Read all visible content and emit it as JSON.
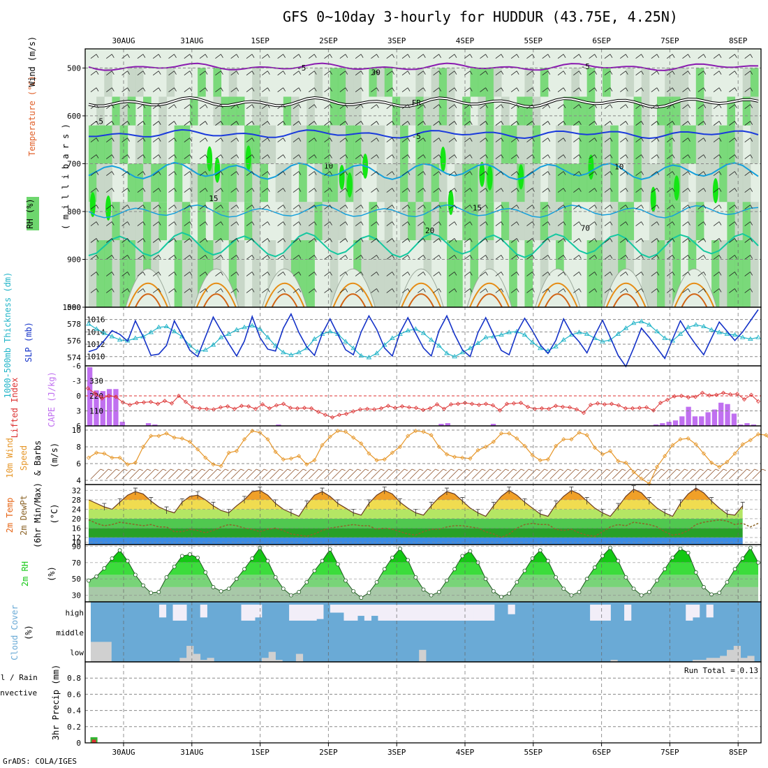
{
  "title": "GFS 0~10day 3-hourly for HUDDUR (43.75E, 4.25N)",
  "credit": "GrADS: COLA/IGES",
  "colors": {
    "rh_light": "#e4efe4",
    "rh_mid": "#c4d4c4",
    "rh_green": "#6ed66e",
    "rh_bright": "#14e614",
    "temp_purple": "#8a1ab0",
    "temp_freezing": "#000000",
    "temp_blue": "#1a3adc",
    "temp_cyan": "#14a0dc",
    "temp_teal": "#14c8a0",
    "temp_orange": "#e68c14",
    "temp_red": "#e61478",
    "slp": "#1432c8",
    "thickness": "#22b4c8",
    "cape": "#c070f0",
    "lifted": "#dc3232",
    "wind": "#e69628",
    "barb": "#8c5028",
    "temp2m": "#e66414",
    "dew": "#8c6428",
    "rh2m": "#14c814",
    "cloud": "#6aaad6",
    "cloud_clear": "#f2eef8",
    "cloud_low": "#d0d0d0",
    "precip_total": "#32b432",
    "precip_conv": "#dc3232"
  },
  "chart_data": [
    {
      "name": "upper-air",
      "type": "contour",
      "date_labels": [
        "30AUG",
        "31AUG",
        "1SEP",
        "2SEP",
        "3SEP",
        "4SEP",
        "5SEP",
        "6SEP",
        "7SEP",
        "8SEP"
      ],
      "ylabel_parts": [
        "RH (%)",
        "Temperature (°C)",
        "Wind (m/s)"
      ],
      "ylabel_axis": "( m i l l i b a r s )",
      "y_ticks": [
        500,
        600,
        700,
        800,
        900,
        1000
      ],
      "ylim": [
        460,
        1000
      ],
      "contour_labels": [
        {
          "text": "-5",
          "t": 0.32,
          "p": 505,
          "color": "temp_purple"
        },
        {
          "text": "-5",
          "t": 0.74,
          "p": 502,
          "color": "temp_purple"
        },
        {
          "text": "FR",
          "t": 0.49,
          "p": 578,
          "color": "temp_freezing"
        },
        {
          "text": "-5",
          "t": 0.02,
          "p": 617,
          "color": "temp_blue"
        },
        {
          "text": "-5",
          "t": 0.49,
          "p": 648,
          "color": "temp_blue"
        },
        {
          "text": "10",
          "t": 0.36,
          "p": 710,
          "color": "temp_cyan"
        },
        {
          "text": "10",
          "t": 0.79,
          "p": 712,
          "color": "temp_cyan"
        },
        {
          "text": "15",
          "t": 0.19,
          "p": 778,
          "color": "temp_cyan"
        },
        {
          "text": "15",
          "t": 0.58,
          "p": 798,
          "color": "temp_cyan"
        },
        {
          "text": "20",
          "t": 0.51,
          "p": 845,
          "color": "temp_teal"
        },
        {
          "text": "30",
          "t": 0.43,
          "p": 515,
          "color": "rh_mid"
        },
        {
          "text": "70",
          "t": 0.74,
          "p": 840,
          "color": "rh_mid"
        }
      ],
      "contours": {
        "m5": 498,
        "freezing": 572,
        "t5": 638,
        "t10": 715,
        "t15": 800,
        "t20": 870
      }
    },
    {
      "name": "thickness-slp",
      "type": "line",
      "ylabel_thickness": "1000-500mb Thickness (dm)",
      "ylabel_slp": "SLP (mb)",
      "left_ticks": [
        574,
        576,
        578,
        580
      ],
      "right_ticks": [
        1010,
        1012,
        1014,
        1016
      ],
      "slp_ylim": [
        1008.5,
        1018
      ],
      "thick_ylim": [
        573,
        580
      ],
      "slp": [
        1010.8,
        1011.2,
        1012.6,
        1014.2,
        1013.6,
        1012.5,
        1015.8,
        1013.2,
        1010.2,
        1010.4,
        1011.8,
        1015.8,
        1013.5,
        1011.0,
        1010.0,
        1013.2,
        1016.4,
        1014.2,
        1012.1,
        1010.1,
        1012.5,
        1016.5,
        1013.1,
        1011.2,
        1010.9,
        1014.6,
        1016.9,
        1013.9,
        1011.6,
        1010.2,
        1013.7,
        1016.1,
        1013.6,
        1011.1,
        1010.3,
        1014.0,
        1016.6,
        1014.4,
        1011.4,
        1010.1,
        1013.9,
        1016.3,
        1013.8,
        1011.4,
        1010.1,
        1014.2,
        1016.6,
        1013.6,
        1011.1,
        1010.0,
        1013.9,
        1016.3,
        1013.6,
        1011.0,
        1010.3,
        1013.9,
        1016.2,
        1014.2,
        1011.9,
        1010.5,
        1012.6,
        1016.1,
        1013.8,
        1012.4,
        1010.6,
        1013.4,
        1015.9,
        1013.1,
        1010.2,
        1008.4,
        1011.4,
        1014.6,
        1013.1,
        1011.4,
        1009.7,
        1012.8,
        1015.8,
        1013.7,
        1011.9,
        1010.3,
        1013.0,
        1015.6,
        1014.1,
        1012.6,
        1014.0,
        1015.8,
        1017.6
      ],
      "thickness": [
        578.0,
        577.4,
        576.9,
        576.5,
        576.1,
        576.0,
        576.3,
        576.5,
        577.0,
        577.6,
        577.7,
        577.1,
        576.5,
        575.4,
        574.7,
        574.9,
        575.5,
        576.4,
        576.8,
        577.3,
        577.6,
        577.8,
        577.4,
        576.4,
        575.4,
        574.6,
        574.3,
        574.6,
        575.1,
        576.2,
        576.8,
        577.1,
        576.8,
        575.9,
        575.1,
        574.2,
        574.0,
        574.5,
        575.5,
        576.3,
        576.8,
        577.2,
        577.4,
        576.9,
        576.1,
        575.4,
        574.5,
        574.1,
        574.6,
        575.1,
        575.7,
        576.4,
        576.5,
        576.7,
        577.0,
        577.1,
        576.7,
        575.8,
        575.1,
        574.8,
        575.3,
        576.1,
        576.7,
        577.0,
        576.8,
        576.3,
        575.9,
        576.1,
        576.8,
        577.5,
        578.1,
        578.3,
        577.9,
        577.1,
        576.3,
        576.0,
        576.8,
        577.6,
        577.9,
        577.7,
        577.3,
        577.0,
        576.8,
        576.7,
        576.4,
        576.2,
        576.4
      ]
    },
    {
      "name": "lifted-cape",
      "type": "bar+line",
      "ylabel_lifted": "Lifted Index",
      "ylabel_cape": "CAPE (J/kg)",
      "left_ticks": [
        "-6",
        "-3",
        "0",
        "3",
        "6"
      ],
      "right_ticks": [
        110,
        220,
        330
      ],
      "cape_ylim": [
        0,
        440
      ],
      "li_ylim": [
        -6,
        6
      ],
      "cape": [
        430,
        260,
        255,
        270,
        270,
        30,
        0,
        0,
        0,
        20,
        10,
        0,
        0,
        0,
        0,
        0,
        0,
        0,
        0,
        0,
        0,
        0,
        0,
        0,
        0,
        0,
        0,
        0,
        0,
        10,
        0,
        0,
        0,
        0,
        0,
        0,
        0,
        0,
        0,
        0,
        0,
        0,
        0,
        0,
        0,
        0,
        0,
        0,
        0,
        0,
        0,
        0,
        0,
        0,
        15,
        20,
        0,
        0,
        0,
        0,
        0,
        0,
        15,
        0,
        0,
        0,
        0,
        0,
        0,
        0,
        0,
        0,
        0,
        0,
        0,
        0,
        0,
        0,
        0,
        0,
        0,
        0,
        0,
        0,
        0,
        0,
        0,
        10,
        20,
        30,
        40,
        70,
        140,
        70,
        70,
        100,
        120,
        170,
        160,
        90,
        10,
        20,
        10
      ],
      "lifted": [
        -1.5,
        -0.5,
        0.5,
        0.0,
        0.2,
        1.3,
        1.8,
        1.4,
        1.3,
        1.2,
        1.6,
        1.0,
        1.5,
        -0.0,
        1.2,
        2.3,
        2.5,
        2.6,
        2.7,
        2.3,
        2.1,
        2.6,
        2.0,
        2.1,
        2.6,
        1.7,
        2.5,
        1.9,
        1.6,
        2.4,
        2.5,
        2.4,
        2.5,
        3.2,
        3.8,
        4.3,
        3.8,
        3.6,
        3.1,
        2.7,
        2.6,
        2.7,
        2.5,
        2.0,
        2.4,
        2.1,
        2.3,
        2.4,
        2.8,
        2.5,
        1.7,
        2.6,
        1.7,
        1.6,
        1.4,
        1.6,
        1.8,
        1.6,
        1.9,
        2.9,
        1.6,
        1.5,
        1.4,
        2.2,
        2.6,
        2.5,
        2.6,
        2.0,
        2.2,
        2.3,
        2.7,
        3.4,
        1.8,
        1.5,
        1.7,
        1.6,
        1.9,
        2.5,
        2.5,
        2.4,
        2.3,
        2.9,
        1.4,
        0.8,
        0.1,
        -0.0,
        0.3,
        0.2,
        -0.6,
        -0.1,
        -0.2,
        -0.6,
        -0.3,
        -0.4,
        0.7,
        -0.2,
        1.1
      ]
    },
    {
      "name": "wind10m",
      "type": "line",
      "ylabel_wind": "10m Wind",
      "ylabel_speed": "Speed",
      "ylabel_barbs": "& Barbs",
      "ylabel_unit": "(m/s)",
      "ticks": [
        4,
        6,
        8,
        10
      ],
      "ylim": [
        3.5,
        10.5
      ],
      "values": [
        6.7,
        7.3,
        7.2,
        6.7,
        6.7,
        5.9,
        6.1,
        8.0,
        9.3,
        9.3,
        9.6,
        9.1,
        9.0,
        8.6,
        7.7,
        6.7,
        5.9,
        5.7,
        7.3,
        7.5,
        8.9,
        9.9,
        9.7,
        8.9,
        7.4,
        6.5,
        6.6,
        6.9,
        5.9,
        6.4,
        8.2,
        9.2,
        9.9,
        9.8,
        9.1,
        8.4,
        7.2,
        6.4,
        6.5,
        7.3,
        8.0,
        9.3,
        9.9,
        9.8,
        9.4,
        8.0,
        7.1,
        6.8,
        6.7,
        6.6,
        7.6,
        8.0,
        8.6,
        9.6,
        9.6,
        9.0,
        8.1,
        7.0,
        6.4,
        6.5,
        8.1,
        8.9,
        8.9,
        9.7,
        9.4,
        7.9,
        7.1,
        7.5,
        6.3,
        6.1,
        5.0,
        4.2,
        3.6,
        5.6,
        6.9,
        8.2,
        8.9,
        9.0,
        8.3,
        7.2,
        6.1,
        5.6,
        6.2,
        7.2,
        8.3,
        8.8,
        9.5,
        9.4,
        8.3,
        7.2,
        6.5,
        6.5,
        7.1,
        8.6,
        9.0,
        10.0
      ]
    },
    {
      "name": "temp2m",
      "type": "area",
      "ylabel_temp": "2m Temp",
      "ylabel_dew": "2m DewPt",
      "ylabel_minmax": "(6hr Min/Max)",
      "ylabel_unit": "(°C)",
      "ticks": [
        10,
        12,
        16,
        20,
        24,
        28,
        32
      ],
      "ylim": [
        9,
        34.5
      ],
      "temp": [
        28.0,
        26.5,
        25.0,
        24.0,
        27.0,
        30.0,
        31.5,
        30.5,
        27.5,
        25.0,
        23.5,
        22.5,
        27.0,
        29.5,
        30.0,
        28.0,
        25.5,
        23.5,
        22.5,
        25.5,
        28.0,
        31.5,
        32.0,
        30.0,
        26.5,
        24.0,
        22.5,
        21.0,
        26.0,
        30.0,
        31.5,
        29.5,
        26.5,
        24.5,
        22.5,
        21.5,
        26.5,
        30.0,
        32.0,
        30.5,
        27.0,
        24.5,
        22.5,
        21.5,
        25.5,
        29.0,
        31.5,
        30.5,
        27.5,
        24.5,
        22.5,
        21.0,
        25.5,
        29.5,
        32.0,
        30.0,
        27.0,
        24.5,
        22.0,
        21.0,
        26.0,
        29.5,
        32.0,
        30.5,
        27.5,
        24.5,
        22.5,
        21.0,
        25.0,
        29.5,
        32.5,
        31.0,
        27.5,
        24.5,
        22.5,
        21.0,
        26.5,
        30.5,
        33.0,
        31.0,
        27.5,
        24.5,
        22.0,
        21.5,
        25.5
      ],
      "dew": [
        19.5,
        18.0,
        17.0,
        17.5,
        18.5,
        18.0,
        17.5,
        17.0,
        17.5,
        16.5,
        16.5,
        14.5,
        14.5,
        15.5,
        15.0,
        14.0,
        15.0,
        16.5,
        17.5,
        17.0,
        16.0,
        15.5,
        14.5,
        15.5,
        16.0,
        15.0,
        13.5,
        13.0,
        12.5,
        13.5,
        15.0,
        16.0,
        16.5,
        17.0,
        17.5,
        17.0,
        17.0,
        15.5,
        16.0,
        15.5,
        14.5,
        13.5,
        13.0,
        14.5,
        15.5,
        15.5,
        16.5,
        17.0,
        17.0,
        16.5,
        16.0,
        14.5,
        13.5,
        12.0,
        13.5,
        16.0,
        17.5,
        18.0,
        17.5,
        17.5,
        15.5,
        15.0,
        15.5,
        14.0,
        13.0,
        12.5,
        14.5,
        16.5,
        17.5,
        17.0,
        18.5,
        18.0,
        17.5,
        16.5,
        14.5,
        13.0,
        13.5,
        15.0,
        17.5,
        18.5,
        19.0,
        19.5,
        19.0,
        17.5,
        18.0,
        16.5,
        18.0
      ]
    },
    {
      "name": "rh2m",
      "type": "area",
      "ylabel": "2m RH",
      "ylabel_unit": "(%)",
      "ticks": [
        30,
        50,
        70,
        90
      ],
      "ylim": [
        22,
        92
      ],
      "values": [
        48.0,
        53.0,
        63.0,
        75.0,
        85.0,
        72.0,
        55.0,
        42.0,
        33.0,
        34.0,
        52.0,
        65.0,
        78.0,
        80.0,
        76.0,
        58.0,
        40.0,
        35.0,
        38.0,
        50.0,
        62.0,
        75.0,
        88.0,
        72.0,
        52.0,
        38.0,
        30.0,
        34.0,
        46.0,
        60.0,
        72.0,
        86.0,
        68.0,
        48.0,
        35.0,
        27.0,
        33.0,
        46.0,
        62.0,
        76.0,
        87.0,
        73.0,
        52.0,
        37.0,
        30.0,
        34.0,
        48.0,
        62.0,
        78.0,
        84.0,
        70.0,
        50.0,
        35.0,
        28.0,
        32.0,
        46.0,
        60.0,
        75.0,
        85.0,
        72.0,
        52.0,
        38.0,
        30.0,
        34.0,
        50.0,
        64.0,
        78.0,
        88.0,
        72.0,
        52.0,
        38.0,
        30.0,
        34.0,
        48.0,
        62.0,
        76.0,
        87.0,
        82.0,
        58.0,
        40.0,
        31.0,
        33.0,
        46.0,
        62.0,
        75.0,
        88.0,
        70.0
      ]
    },
    {
      "name": "cloud-cover",
      "type": "heatmap",
      "ylabel_cloud": "Cloud Cover",
      "ylabel_unit": "(%)",
      "rows": [
        "high",
        "middle",
        "low"
      ],
      "high": [
        100,
        100,
        100,
        100,
        100,
        100,
        100,
        100,
        100,
        100,
        20,
        100,
        0,
        0,
        100,
        100,
        20,
        100,
        100,
        100,
        100,
        100,
        0,
        0,
        20,
        100,
        100,
        100,
        100,
        0,
        0,
        0,
        0,
        10,
        100,
        50,
        50,
        0,
        0,
        30,
        0,
        30,
        0,
        0,
        0,
        0,
        0,
        0,
        0,
        0,
        0,
        0,
        0,
        0,
        0,
        0,
        0,
        0,
        0,
        100,
        100,
        40,
        100,
        100,
        100,
        100,
        100,
        100,
        100,
        100,
        100,
        100,
        100,
        0,
        0,
        0,
        100,
        100,
        0,
        100,
        100,
        100,
        100,
        100,
        100,
        100,
        100,
        0,
        20,
        100,
        20,
        100,
        100,
        100,
        100,
        100,
        100,
        100
      ],
      "middle": [
        0,
        0,
        0,
        0,
        0,
        0,
        0,
        0,
        0,
        0,
        0,
        0,
        0,
        0,
        0,
        0,
        0,
        0,
        0,
        0,
        0,
        0,
        0,
        0,
        0,
        0,
        0,
        0,
        0,
        0,
        0,
        0,
        0,
        0,
        0,
        0,
        0,
        0,
        0,
        0,
        0,
        0,
        0,
        0,
        0,
        0,
        0,
        0,
        0,
        0,
        0,
        0,
        0,
        0,
        0,
        0,
        0,
        0,
        0,
        0,
        0,
        0,
        0,
        0,
        0,
        0,
        0,
        0,
        0,
        0,
        0,
        0,
        0,
        0,
        0,
        0,
        0,
        0,
        0,
        0,
        0,
        0,
        0,
        0,
        0,
        0,
        0,
        0,
        0,
        0,
        0,
        0,
        0,
        0,
        0,
        0,
        0
      ],
      "low": [
        100,
        100,
        100,
        0,
        0,
        0,
        0,
        0,
        0,
        0,
        0,
        0,
        0,
        20,
        80,
        40,
        10,
        20,
        0,
        0,
        0,
        0,
        0,
        0,
        0,
        20,
        50,
        10,
        0,
        0,
        40,
        0,
        0,
        0,
        0,
        0,
        0,
        0,
        0,
        0,
        0,
        0,
        0,
        0,
        0,
        0,
        0,
        0,
        60,
        0,
        0,
        0,
        0,
        0,
        0,
        0,
        0,
        0,
        0,
        0,
        0,
        0,
        0,
        0,
        0,
        0,
        0,
        0,
        0,
        0,
        0,
        0,
        0,
        0,
        0,
        0,
        10,
        0,
        0,
        0,
        0,
        0,
        0,
        0,
        0,
        0,
        0,
        0,
        10,
        10,
        20,
        20,
        30,
        60,
        80,
        20,
        30
      ]
    },
    {
      "name": "precip",
      "type": "bar",
      "ylabel_total": "Total / Rain",
      "ylabel_conv": "Convective",
      "ylabel_precip": "3hr Precip (mm)",
      "ticks": [
        "0",
        "0.2",
        "0.4",
        "0.6",
        "0.8"
      ],
      "ylim": [
        0,
        1.0
      ],
      "run_total": "Run Total = 0.13",
      "total": [
        {
          "i": 1,
          "v": 0.07
        },
        {
          "i": 90,
          "v": 0.06
        }
      ],
      "convective": [
        {
          "i": 1,
          "v": 0.04
        },
        {
          "i": 90,
          "v": 0.04
        }
      ]
    }
  ]
}
